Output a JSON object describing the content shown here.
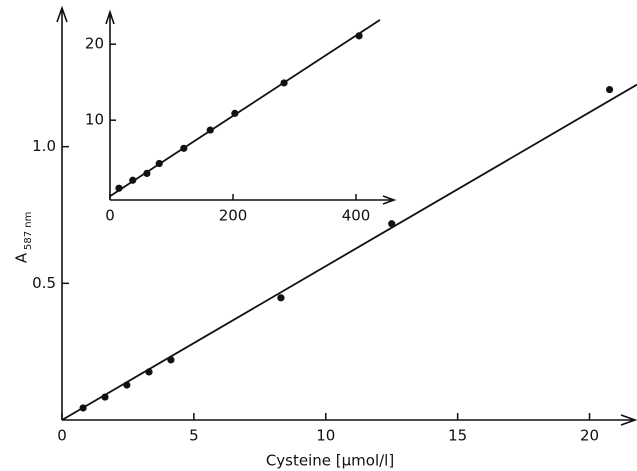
{
  "chart_data": [
    {
      "type": "scatter",
      "x_label": "Cysteine [µmol/l]",
      "y_label": "A",
      "y_label_subscript": "587 nm",
      "xlim": [
        0,
        21.8
      ],
      "ylim": [
        0,
        1.5
      ],
      "xticks": [
        0,
        5,
        10,
        15,
        20
      ],
      "yticks": [
        0.5,
        {
          "value": 1,
          "label": "1.0"
        }
      ],
      "series": [
        {
          "mode": "markers",
          "color": "#111",
          "x": [
            0.8,
            1.63,
            2.46,
            3.3,
            4.13,
            8.3,
            12.5,
            20.76
          ],
          "values": [
            0.044,
            0.084,
            0.128,
            0.176,
            0.22,
            0.447,
            0.718,
            1.209
          ]
        },
        {
          "mode": "line",
          "color": "#111",
          "x": [
            0,
            21.8
          ],
          "values": [
            0,
            1.227
          ]
        }
      ]
    },
    {
      "type": "scatter",
      "xlim": [
        0,
        465
      ],
      "ylim": [
        -0.5,
        24
      ],
      "xticks": [
        0,
        200,
        400
      ],
      "yticks": [
        10,
        20
      ],
      "series": [
        {
          "mode": "markers",
          "color": "#111",
          "x": [
            14.6,
            37,
            60,
            80,
            120,
            163,
            203,
            283,
            405
          ],
          "values": [
            1.05,
            2.1,
            3.0,
            4.3,
            6.3,
            8.7,
            10.9,
            14.9,
            21.1
          ]
        },
        {
          "mode": "line",
          "color": "#111",
          "x": [
            0,
            439
          ],
          "values": [
            0,
            23.2
          ]
        }
      ]
    }
  ]
}
